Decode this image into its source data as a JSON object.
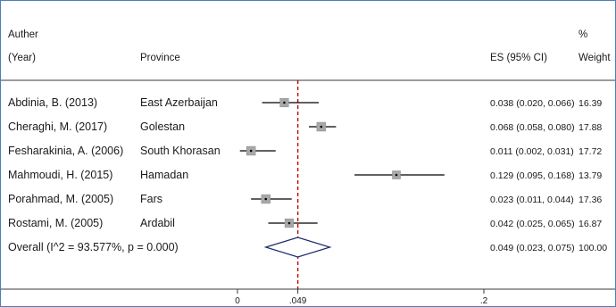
{
  "chart_data": {
    "type": "forest",
    "columns": {
      "study_header": [
        "Auther",
        "(Year)"
      ],
      "province_header": "Province",
      "es_header": "ES (95% CI)",
      "weight_header": [
        "%",
        "Weight"
      ]
    },
    "studies": [
      {
        "study": "Abdinia, B. (2013)",
        "province": "East Azerbaijan",
        "es": 0.038,
        "lo": 0.02,
        "hi": 0.066,
        "es_text": "0.038 (0.020, 0.066)",
        "weight": "16.39"
      },
      {
        "study": "Cheraghi, M. (2017)",
        "province": "Golestan",
        "es": 0.068,
        "lo": 0.058,
        "hi": 0.08,
        "es_text": "0.068 (0.058, 0.080)",
        "weight": "17.88"
      },
      {
        "study": "Fesharakinia, A. (2006)",
        "province": "South Khorasan",
        "es": 0.011,
        "lo": 0.002,
        "hi": 0.031,
        "es_text": "0.011 (0.002, 0.031)",
        "weight": "17.72"
      },
      {
        "study": "Mahmoudi, H. (2015)",
        "province": "Hamadan",
        "es": 0.129,
        "lo": 0.095,
        "hi": 0.168,
        "es_text": "0.129 (0.095, 0.168)",
        "weight": "13.79"
      },
      {
        "study": "Porahmad, M. (2005)",
        "province": "Fars",
        "es": 0.023,
        "lo": 0.011,
        "hi": 0.044,
        "es_text": "0.023 (0.011, 0.044)",
        "weight": "17.36"
      },
      {
        "study": "Rostami, M. (2005)",
        "province": "Ardabil",
        "es": 0.042,
        "lo": 0.025,
        "hi": 0.065,
        "es_text": "0.042 (0.025, 0.065)",
        "weight": "16.87"
      }
    ],
    "overall": {
      "label": "Overall  (I^2 = 93.577%, p = 0.000)",
      "es": 0.049,
      "lo": 0.023,
      "hi": 0.075,
      "es_text": "0.049 (0.023, 0.075)",
      "weight": "100.00"
    },
    "x_axis": {
      "ticks": [
        {
          "value": 0,
          "label": "0"
        },
        {
          "value": 0.049,
          "label": ".049"
        },
        {
          "value": 0.2,
          "label": ".2"
        }
      ]
    },
    "colors": {
      "frame": "#4a7ebb",
      "summary_line": "#cc0000",
      "box": "#a8a8a8",
      "ci_line": "#000000",
      "diamond": "#1f2a6b"
    }
  }
}
